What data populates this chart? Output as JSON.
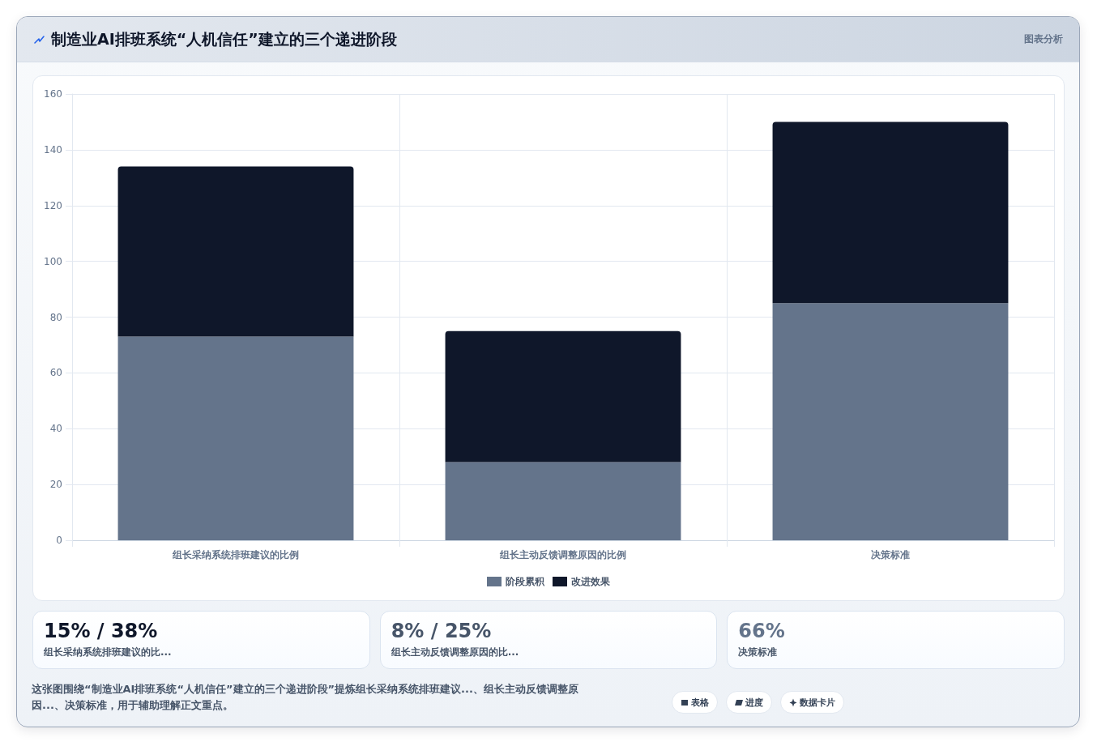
{
  "chart_data": [
    {
      "type": "bar",
      "title": "制造业AI排班系统“人机信任”建立的三个递进阶段",
      "categories": [
        "组长采纳系统排班建议的比例",
        "组长主动反馈调整原因的比例",
        "决策标准"
      ],
      "series": [
        {
          "name": "阶段累积",
          "color": "#64748b",
          "values": [
            73,
            28,
            85
          ]
        },
        {
          "name": "改进效果",
          "color": "#0f172a",
          "values": [
            61,
            47,
            65
          ]
        }
      ],
      "stacked": true,
      "ylim": [
        0,
        160
      ],
      "yticks": [
        0,
        20,
        40,
        60,
        80,
        100,
        120,
        140,
        160
      ],
      "grid": true,
      "legend": "bottom",
      "annotations": [
        "图表分析",
        "这张图围绕“制造业AI排班系统“人机信任”建立的三个递进阶段”提炼组长采纳系统排班建议...、组长主动反馈调整原因...、决策标准，用于辅助理解正文重点。",
        "表格",
        "进度",
        "数据卡片"
      ]
    },
    {
      "type": "other",
      "annotations": [
        "15% / 38%",
        "组长采纳系统排班建议的比..."
      ]
    },
    {
      "type": "other",
      "annotations": [
        "8% / 25%",
        "组长主动反馈调整原因的比..."
      ]
    },
    {
      "type": "other",
      "annotations": [
        "66%",
        "决策标准"
      ]
    }
  ]
}
